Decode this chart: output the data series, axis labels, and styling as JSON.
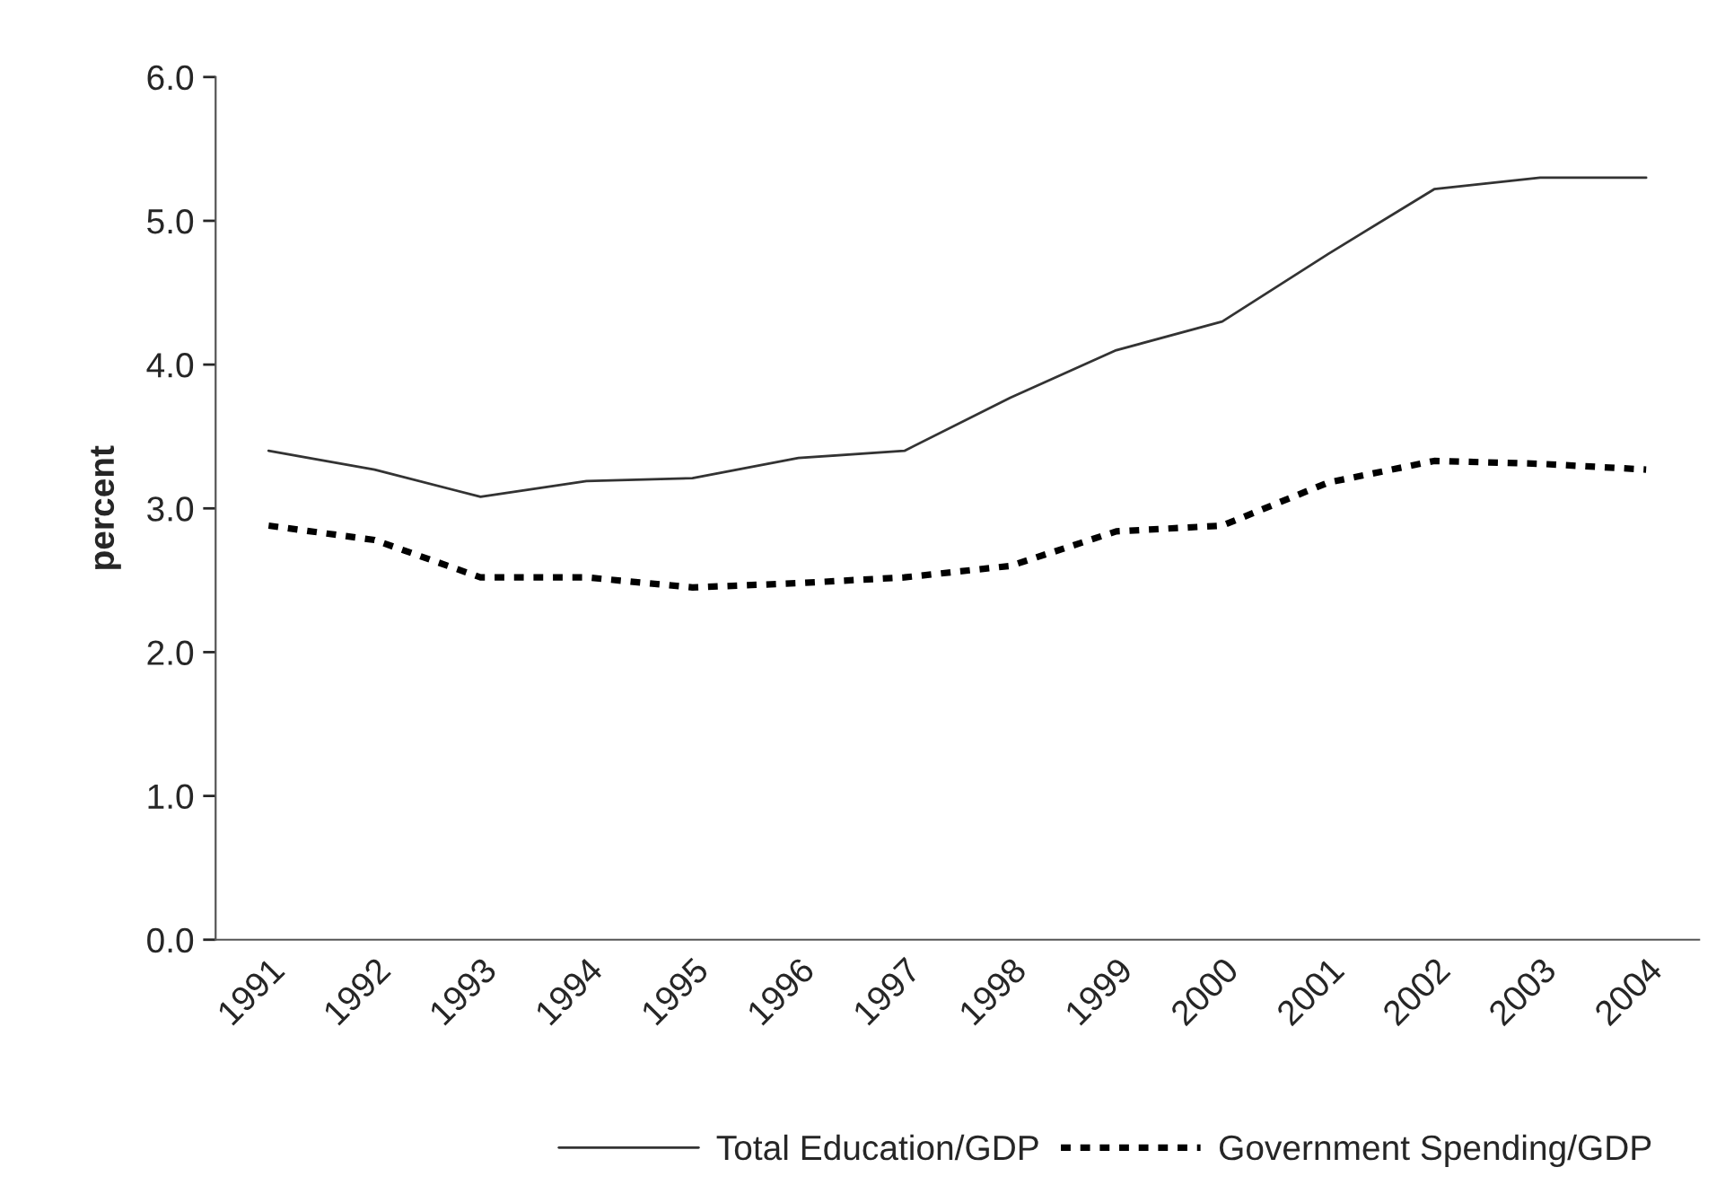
{
  "chart_data": {
    "type": "line",
    "ylabel": "percent",
    "categories": [
      "1991",
      "1992",
      "1993",
      "1994",
      "1995",
      "1996",
      "1997",
      "1998",
      "1999",
      "2000",
      "2001",
      "2002",
      "2003",
      "2004"
    ],
    "series": [
      {
        "name": "Total Education/GDP",
        "color": "#333333",
        "line_style": "solid",
        "values": [
          3.4,
          3.27,
          3.08,
          3.19,
          3.21,
          3.35,
          3.4,
          3.77,
          4.1,
          4.3,
          4.77,
          5.22,
          5.3,
          5.3
        ]
      },
      {
        "name": "Government Spending/GDP",
        "color": "#000000",
        "line_style": "dotted",
        "values": [
          2.88,
          2.78,
          2.52,
          2.52,
          2.45,
          2.48,
          2.52,
          2.6,
          2.84,
          2.88,
          3.18,
          3.33,
          3.31,
          3.27
        ]
      }
    ],
    "ylim": [
      0,
      6
    ],
    "yticks": [
      {
        "value": 0,
        "label": "0.0"
      },
      {
        "value": 1,
        "label": "1.0"
      },
      {
        "value": 2,
        "label": "2.0"
      },
      {
        "value": 3,
        "label": "3.0"
      },
      {
        "value": 4,
        "label": "4.0"
      },
      {
        "value": 5,
        "label": "5.0"
      },
      {
        "value": 6,
        "label": "6.0"
      }
    ],
    "grid": false,
    "legend": "bottom",
    "marker": "none"
  }
}
